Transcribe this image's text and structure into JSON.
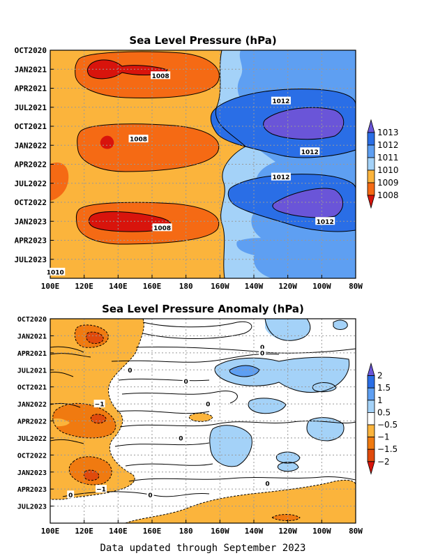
{
  "footer": "Data updated through September 2023",
  "chart_data": [
    {
      "type": "heatmap",
      "title": "Sea Level Pressure (hPa)",
      "x_ticks": [
        "100E",
        "120E",
        "140E",
        "160E",
        "180",
        "160W",
        "140W",
        "120W",
        "100W",
        "80W"
      ],
      "y_ticks": [
        "OCT2020",
        "JAN2021",
        "APR2021",
        "JUL2021",
        "OCT2021",
        "JAN2022",
        "APR2022",
        "JUL2022",
        "OCT2022",
        "JAN2023",
        "APR2023",
        "JUL2023"
      ],
      "x_range": [
        "100E",
        "80W"
      ],
      "y_range": [
        "OCT2020",
        "SEP2023"
      ],
      "grid": true,
      "legend": {
        "position": "right",
        "levels": [
          "1013",
          "1012",
          "1011",
          "1010",
          "1009",
          "1008"
        ],
        "colors": [
          "#6a55d8",
          "#2a6ee6",
          "#5e9ff2",
          "#a4d2f8",
          "#fbb43c",
          "#f56a14",
          "#d8140c"
        ]
      },
      "contour_labels": [
        {
          "text": "1008",
          "lon": 165,
          "date": "2021-02"
        },
        {
          "text": "1012",
          "lon": 236,
          "date": "2021-06"
        },
        {
          "text": "1008",
          "lon": 152,
          "date": "2021-12"
        },
        {
          "text": "1012",
          "lon": 253,
          "date": "2022-02"
        },
        {
          "text": "1012",
          "lon": 236,
          "date": "2022-06"
        },
        {
          "text": "1008",
          "lon": 166,
          "date": "2023-02"
        },
        {
          "text": "1012",
          "lon": 262,
          "date": "2023-01"
        },
        {
          "text": "1010",
          "lon": 103,
          "date": "2023-09"
        }
      ]
    },
    {
      "type": "heatmap",
      "title": "Sea Level Pressure Anomaly (hPa)",
      "x_ticks": [
        "100E",
        "120E",
        "140E",
        "160E",
        "180",
        "160W",
        "140W",
        "120W",
        "100W",
        "80W"
      ],
      "y_ticks": [
        "OCT2020",
        "JAN2021",
        "APR2021",
        "JUL2021",
        "OCT2021",
        "JAN2022",
        "APR2022",
        "JUL2022",
        "OCT2022",
        "JAN2023",
        "APR2023",
        "JUL2023"
      ],
      "x_range": [
        "100E",
        "80W"
      ],
      "y_range": [
        "OCT2020",
        "SEP2023"
      ],
      "grid": true,
      "legend": {
        "position": "right",
        "levels": [
          "2",
          "1.5",
          "1",
          "0.5",
          "−0.5",
          "−1",
          "−1.5",
          "−2"
        ],
        "colors": [
          "#6a55d8",
          "#2a6ee6",
          "#5e9ff2",
          "#a4d2f8",
          "#ffffff",
          "#fbb43c",
          "#f07a10",
          "#e04a0c",
          "#d8140c"
        ]
      },
      "contour_labels": [
        {
          "text": "0",
          "lon": 225,
          "date": "2021-03"
        },
        {
          "text": "0",
          "lon": 225,
          "date": "2021-04"
        },
        {
          "text": "0",
          "lon": 147,
          "date": "2021-07"
        },
        {
          "text": "0",
          "lon": 180,
          "date": "2021-09"
        },
        {
          "text": "−1",
          "lon": 129,
          "date": "2022-01"
        },
        {
          "text": "0",
          "lon": 193,
          "date": "2022-01"
        },
        {
          "text": "0",
          "lon": 177,
          "date": "2022-07"
        },
        {
          "text": "0",
          "lon": 228,
          "date": "2023-03"
        },
        {
          "text": "−1",
          "lon": 130,
          "date": "2023-04"
        },
        {
          "text": "0",
          "lon": 112,
          "date": "2023-05"
        },
        {
          "text": "0",
          "lon": 159,
          "date": "2023-05"
        }
      ]
    }
  ]
}
